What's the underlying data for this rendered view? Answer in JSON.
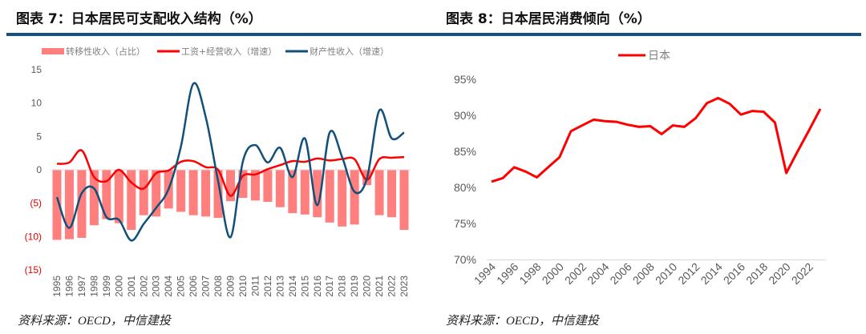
{
  "left": {
    "title": "图表 7：日本居民可支配收入结构（%）",
    "source": "资料来源：OECD，中信建投"
  },
  "right": {
    "title": "图表 8：日本居民消费倾向（%）",
    "source": "资料来源：OECD，中信建投"
  },
  "colors": {
    "rule": "#1b4f7f",
    "bar": "#ff7f7f",
    "red": "#ff0000",
    "blue": "#12507a"
  },
  "chart_data": [
    {
      "type": "bar+line",
      "title": "日本居民可支配收入结构（%）",
      "categories": [
        "1995",
        "1996",
        "1997",
        "1998",
        "1999",
        "2000",
        "2001",
        "2002",
        "2003",
        "2004",
        "2005",
        "2006",
        "2007",
        "2008",
        "2009",
        "2010",
        "2011",
        "2012",
        "2013",
        "2014",
        "2015",
        "2016",
        "2017",
        "2018",
        "2019",
        "2020",
        "2021",
        "2022",
        "2023"
      ],
      "ylim": [
        -15,
        15
      ],
      "yticks": [
        15,
        10,
        5,
        0,
        -5,
        -10,
        -15
      ],
      "ytick_labels": [
        "15",
        "10",
        "5",
        "0",
        "(5)",
        "(10)",
        "(15)"
      ],
      "legend_position": "top",
      "grid": false,
      "series": [
        {
          "name": "转移性收入（占比）",
          "kind": "bar",
          "color": "#ff7f7f",
          "values": [
            -10.5,
            -10.4,
            -10.2,
            -8.3,
            -7.4,
            -8.0,
            -9.0,
            -6.8,
            -7.0,
            -5.8,
            -6.3,
            -6.8,
            -7.0,
            -7.2,
            -4.7,
            -4.2,
            -4.6,
            -4.8,
            -5.6,
            -6.5,
            -6.7,
            -7.1,
            -7.9,
            -8.5,
            -8.2,
            -2.3,
            -6.8,
            -7.1,
            -9.0
          ]
        },
        {
          "name": "工资+经营收入（增速）",
          "kind": "line",
          "color": "#ff0000",
          "values": [
            0.9,
            1.1,
            2.9,
            -1.1,
            -1.7,
            0.0,
            -1.9,
            -2.8,
            -0.5,
            -0.1,
            1.2,
            1.3,
            0.4,
            0.0,
            -3.9,
            -0.9,
            -0.7,
            0.1,
            0.7,
            1.3,
            1.2,
            1.7,
            1.4,
            1.6,
            1.6,
            -1.5,
            1.6,
            1.8,
            1.9
          ]
        },
        {
          "name": "财产性收入（增速）",
          "kind": "line",
          "color": "#12507a",
          "values": [
            -4.1,
            -8.7,
            -3.5,
            -2.8,
            -7.1,
            -7.5,
            -10.6,
            -8.1,
            -5.7,
            -2.9,
            3.5,
            12.9,
            7.9,
            -1.7,
            -10.1,
            1.3,
            3.7,
            1.1,
            3.3,
            -1.1,
            4.7,
            -5.3,
            5.6,
            1.9,
            -3.3,
            -1.3,
            8.9,
            4.7,
            5.6
          ]
        }
      ]
    },
    {
      "type": "line",
      "title": "日本居民消费倾向（%）",
      "x": [
        1994,
        1995,
        1996,
        1997,
        1998,
        1999,
        2000,
        2001,
        2002,
        2003,
        2004,
        2005,
        2006,
        2007,
        2008,
        2009,
        2010,
        2011,
        2012,
        2013,
        2014,
        2015,
        2016,
        2017,
        2018,
        2019,
        2020,
        2021,
        2022,
        2023
      ],
      "xtick_labels": [
        "1994",
        "1996",
        "1998",
        "2000",
        "2002",
        "2004",
        "2006",
        "2008",
        "2010",
        "2012",
        "2014",
        "2016",
        "2018",
        "2020",
        "2022"
      ],
      "ylim": [
        70,
        95
      ],
      "yticks": [
        95,
        90,
        85,
        80,
        75,
        70
      ],
      "ytick_labels": [
        "95%",
        "90%",
        "85%",
        "80%",
        "75%",
        "70%"
      ],
      "legend_position": "top",
      "grid": false,
      "series": [
        {
          "name": "日本",
          "color": "#ff0000",
          "values": [
            80.8,
            81.3,
            82.8,
            82.2,
            81.4,
            82.8,
            84.2,
            87.8,
            88.6,
            89.4,
            89.2,
            89.1,
            88.7,
            88.4,
            88.5,
            87.4,
            88.6,
            88.4,
            89.6,
            91.7,
            92.4,
            91.6,
            90.1,
            90.6,
            90.5,
            89.0,
            82.0,
            85.0,
            87.9,
            90.9
          ]
        }
      ]
    }
  ]
}
